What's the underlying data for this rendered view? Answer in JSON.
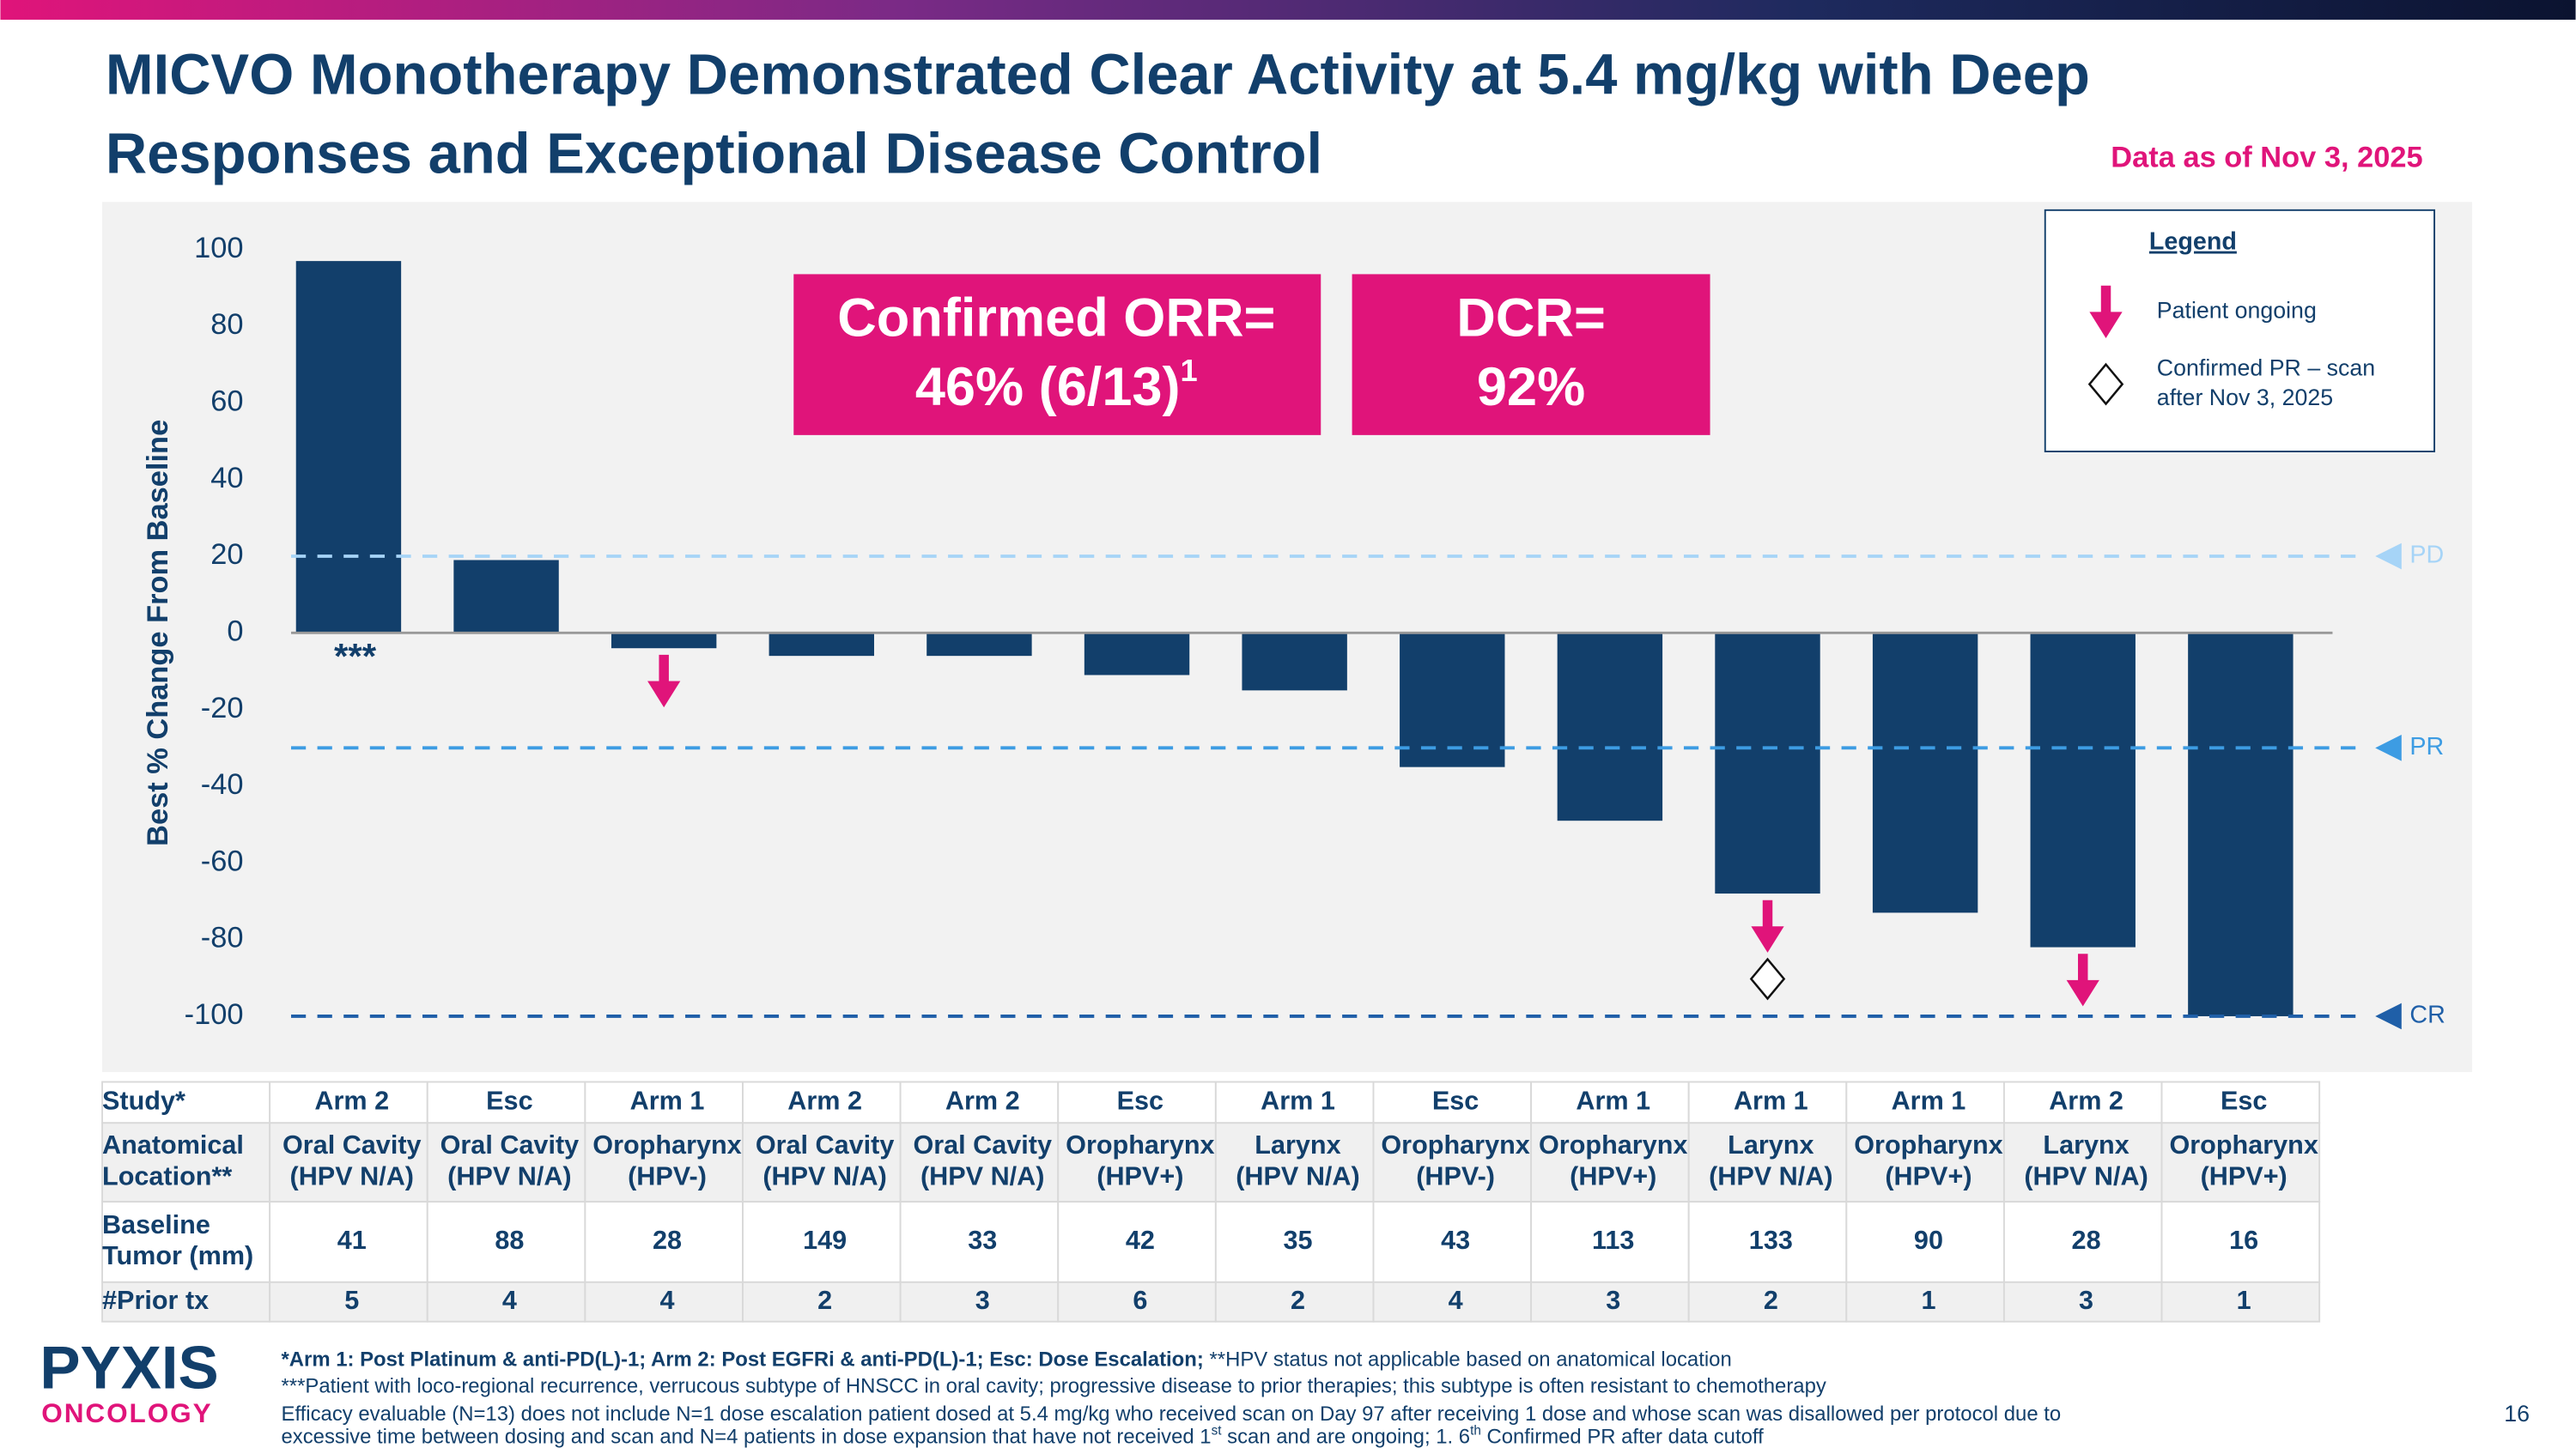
{
  "header": {
    "title_lines": [
      "MICVO Monotherapy Demonstrated Clear Activity at 5.4 mg/kg with Deep",
      "Responses and Exceptional Disease Control"
    ],
    "date": "Data as of Nov 3, 2025"
  },
  "callouts": [
    {
      "lines": [
        "Confirmed ORR=",
        "46% (6/13)"
      ],
      "sup": "1"
    },
    {
      "lines": [
        "DCR=",
        "92%"
      ]
    }
  ],
  "legend": {
    "title": "Legend",
    "ongoing": "Patient ongoing",
    "confirmed_pr": [
      "Confirmed PR – scan",
      "after Nov 3, 2025"
    ]
  },
  "chart_data": {
    "type": "bar",
    "y_label": "Best % Change From Baseline",
    "ylim": [
      -100,
      100
    ],
    "yticks": [
      -100,
      -80,
      -60,
      -40,
      -20,
      0,
      20,
      40,
      60,
      80,
      100
    ],
    "color": "#123f6b",
    "values": [
      97,
      19,
      -4,
      -6,
      -6,
      -11,
      -15,
      -35,
      -49,
      -68,
      -73,
      -82,
      -100
    ],
    "value_notes": [
      "***",
      null,
      null,
      null,
      null,
      null,
      null,
      null,
      null,
      null,
      null,
      null,
      null
    ],
    "ongoing": [
      false,
      false,
      true,
      false,
      false,
      false,
      false,
      false,
      false,
      true,
      false,
      true,
      false
    ],
    "confirmed_pr_after_cutoff": [
      false,
      false,
      false,
      false,
      false,
      false,
      false,
      false,
      false,
      true,
      false,
      false,
      false
    ],
    "marker_color": "#e0147a",
    "reference_lines": [
      {
        "label": "PD",
        "value": 20,
        "color": "#a6d4f7"
      },
      {
        "label": "PR",
        "value": -30,
        "color": "#3d9ce3"
      },
      {
        "label": "CR",
        "value": -100,
        "color": "#1f5fa8"
      }
    ]
  },
  "table": {
    "rows": [
      [
        [
          "Study*"
        ],
        [
          "Arm 2"
        ],
        [
          "Esc"
        ],
        [
          "Arm 1"
        ],
        [
          "Arm 2"
        ],
        [
          "Arm 2"
        ],
        [
          "Esc"
        ],
        [
          "Arm 1"
        ],
        [
          "Esc"
        ],
        [
          "Arm 1"
        ],
        [
          "Arm 1"
        ],
        [
          "Arm 1"
        ],
        [
          "Arm 2"
        ],
        [
          "Esc"
        ]
      ],
      [
        [
          "Anatomical",
          "Location**"
        ],
        [
          "Oral Cavity",
          "(HPV N/A)"
        ],
        [
          "Oral Cavity",
          "(HPV N/A)"
        ],
        [
          "Oropharynx",
          "(HPV-)"
        ],
        [
          "Oral Cavity",
          "(HPV N/A)"
        ],
        [
          "Oral Cavity",
          "(HPV N/A)"
        ],
        [
          "Oropharynx",
          "(HPV+)"
        ],
        [
          "Larynx",
          "(HPV N/A)"
        ],
        [
          "Oropharynx",
          "(HPV-)"
        ],
        [
          "Oropharynx",
          "(HPV+)"
        ],
        [
          "Larynx",
          "(HPV N/A)"
        ],
        [
          "Oropharynx",
          "(HPV+)"
        ],
        [
          "Larynx",
          "(HPV N/A)"
        ],
        [
          "Oropharynx",
          "(HPV+)"
        ]
      ],
      [
        [
          "Baseline",
          "Tumor (mm)"
        ],
        [
          41
        ],
        [
          88
        ],
        [
          28
        ],
        [
          149
        ],
        [
          33
        ],
        [
          42
        ],
        [
          35
        ],
        [
          43
        ],
        [
          113
        ],
        [
          133
        ],
        [
          90
        ],
        [
          28
        ],
        [
          16
        ]
      ],
      [
        [
          "#Prior tx"
        ],
        [
          5
        ],
        [
          4
        ],
        [
          4
        ],
        [
          2
        ],
        [
          3
        ],
        [
          6
        ],
        [
          2
        ],
        [
          4
        ],
        [
          3
        ],
        [
          2
        ],
        [
          1
        ],
        [
          3
        ],
        [
          1
        ]
      ]
    ]
  },
  "footnotes": [
    [
      "*Arm 1: Post Platinum & anti-PD(L)-1; Arm 2: Post EGFRi & anti-PD(L)-1; Esc: Dose Escalation;",
      " **HPV status not applicable based on anatomical location"
    ],
    [
      "***Patient with loco-regional recurrence, verrucous subtype of HNSCC in oral cavity; progressive disease to prior therapies; this subtype is often resistant to chemotherapy"
    ],
    [
      "Efficacy evaluable (N=13) does not include N=1 dose escalation patient dosed at 5.4 mg/kg who received scan on Day 97 after receiving 1 dose and whose scan was disallowed per protocol due to"
    ],
    [
      "excessive time between dosing and scan and N=4 patients in dose expansion that have not received 1",
      "st",
      " scan and are ongoing; 1. 6",
      "th",
      " Confirmed PR after data cutoff"
    ]
  ],
  "logo": {
    "name": "PYXIS",
    "sub": "ONCOLOGY"
  },
  "page_number": "16"
}
